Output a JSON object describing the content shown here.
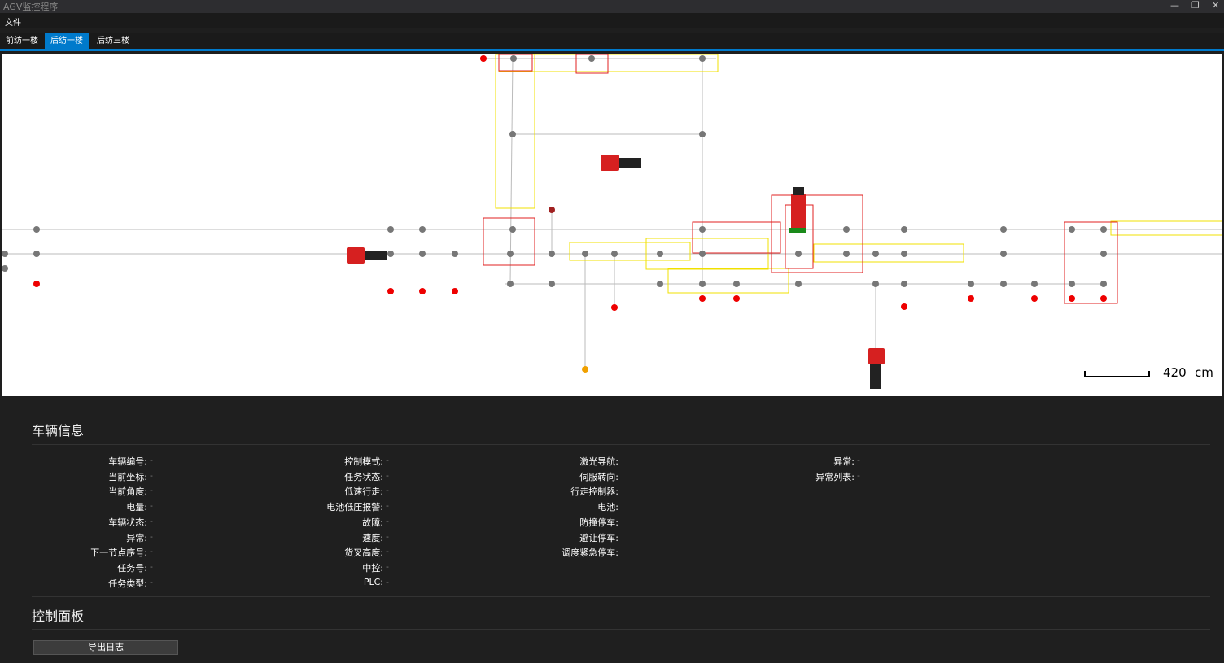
{
  "window": {
    "title": "AGV监控程序",
    "menu": [
      "文件"
    ]
  },
  "tabs": [
    "前纺一楼",
    "后纺一楼",
    "后纺三楼"
  ],
  "active_tab": 1,
  "map": {
    "scale_value": "420",
    "scale_unit": "cm"
  },
  "vehicle_info": {
    "title": "车辆信息",
    "columns": [
      [
        {
          "label": "车辆编号:",
          "value": "-"
        },
        {
          "label": "当前坐标:",
          "value": "-"
        },
        {
          "label": "当前角度:",
          "value": "-"
        },
        {
          "label": "电量:",
          "value": "-"
        },
        {
          "label": "车辆状态:",
          "value": "-"
        },
        {
          "label": "异常:",
          "value": "-"
        },
        {
          "label": "下一节点序号:",
          "value": "-"
        },
        {
          "label": "任务号:",
          "value": "-"
        },
        {
          "label": "任务类型:",
          "value": "-"
        }
      ],
      [
        {
          "label": "控制模式:",
          "value": "-"
        },
        {
          "label": "任务状态:",
          "value": "-"
        },
        {
          "label": "低速行走:",
          "value": "-"
        },
        {
          "label": "电池低压报警:",
          "value": "-"
        },
        {
          "label": "故障:",
          "value": "-"
        },
        {
          "label": "速度:",
          "value": "-"
        },
        {
          "label": "货叉高度:",
          "value": "-"
        },
        {
          "label": "中控:",
          "value": "-"
        },
        {
          "label": "PLC:",
          "value": "-"
        }
      ],
      [
        {
          "label": "激光导航:"
        },
        {
          "label": "伺服转向:"
        },
        {
          "label": "行走控制器:"
        },
        {
          "label": "电池:"
        },
        {
          "label": "防撞停车:"
        },
        {
          "label": "避让停车:"
        },
        {
          "label": "调度紧急停车:"
        }
      ],
      [
        {
          "label": "异常:",
          "value": "-"
        },
        {
          "label": "异常列表:",
          "value": "-"
        }
      ]
    ]
  },
  "control_panel": {
    "title": "控制面板",
    "buttons": [
      "导出日志"
    ]
  }
}
